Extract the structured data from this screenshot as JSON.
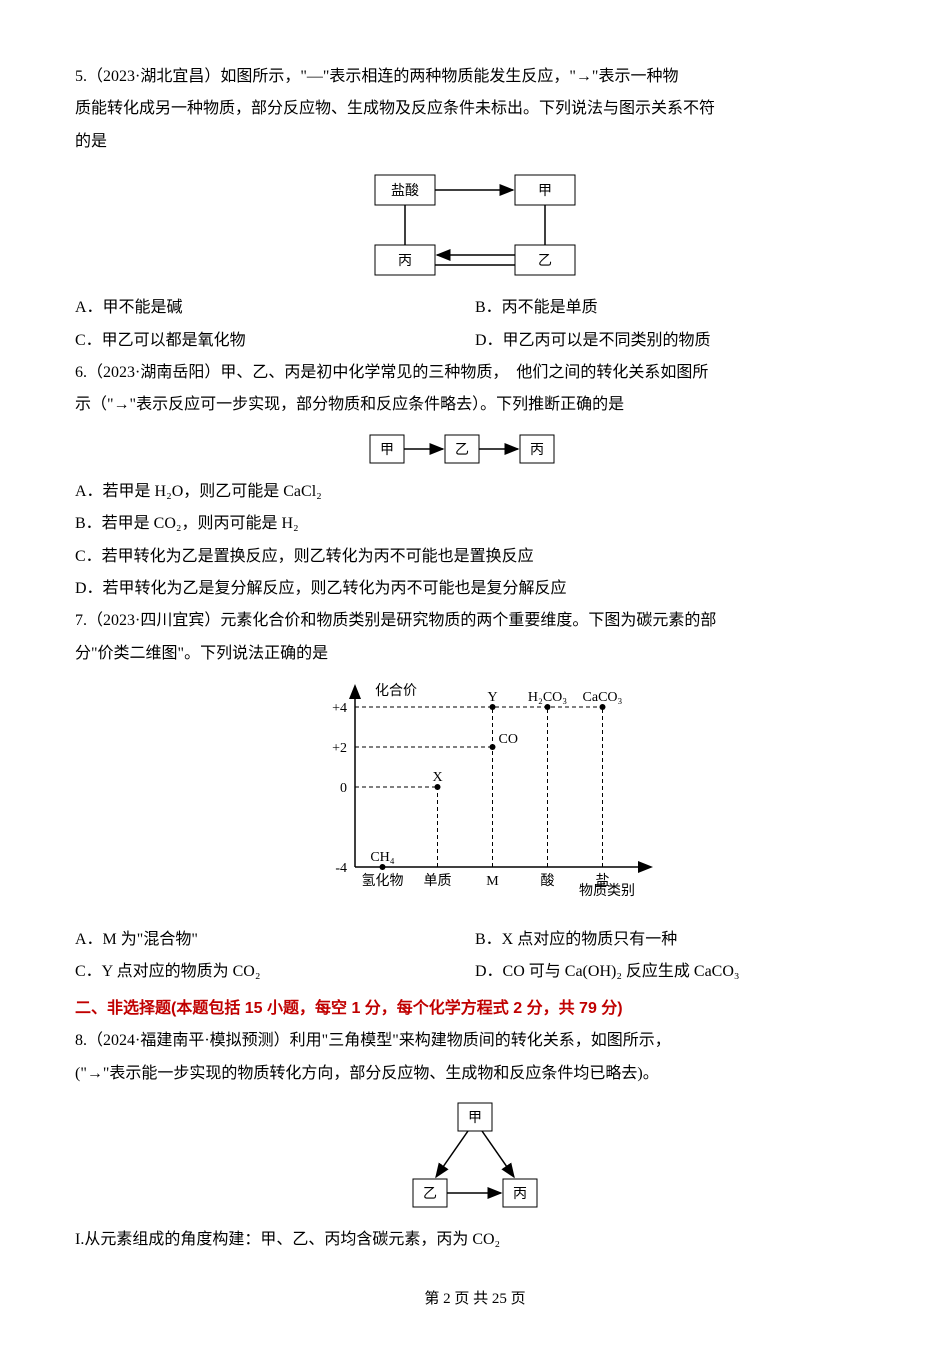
{
  "q5": {
    "stem1": "5.（2023·湖北宜昌）如图所示，\"—\"表示相连的两种物质能发生反应，\"→\"表示一种物",
    "stem2": "质能转化成另一种物质，部分反应物、生成物及反应条件未标出。下列说法与图示关系不符",
    "stem3": "的是",
    "diagram": {
      "nodes": {
        "tl": "盐酸",
        "tr": "甲",
        "bl": "丙",
        "br": "乙"
      },
      "edges": [
        {
          "from": "tl",
          "to": "tr",
          "type": "arrow"
        },
        {
          "from": "tl",
          "to": "bl",
          "type": "line"
        },
        {
          "from": "tr",
          "to": "br",
          "type": "line"
        },
        {
          "from": "br",
          "to": "bl",
          "type": "arrow"
        },
        {
          "from": "bl",
          "to": "br",
          "type": "line"
        }
      ],
      "node_border": "#000",
      "node_bg": "#fff",
      "stroke": "#000",
      "font_size": 14
    },
    "A": "A．甲不能是碱",
    "B": "B．丙不能是单质",
    "C": "C．甲乙可以都是氧化物",
    "D": "D．甲乙丙可以是不同类别的物质"
  },
  "q6": {
    "stem1": "6.（2023·湖南岳阳）甲、乙、丙是初中化学常见的三种物质，　他们之间的转化关系如图所",
    "stem2": "示（\"→\"表示反应可一步实现，部分物质和反应条件略去）。下列推断正确的是",
    "diagram": {
      "nodes": [
        "甲",
        "乙",
        "丙"
      ],
      "node_border": "#000",
      "node_bg": "#fff",
      "stroke": "#000",
      "font_size": 14
    },
    "A": "A．若甲是 H₂O，则乙可能是 CaCl₂",
    "B": "B．若甲是 CO₂，则丙可能是 H₂",
    "C": "C．若甲转化为乙是置换反应，则乙转化为丙不可能也是置换反应",
    "D": "D．若甲转化为乙是复分解反应，则乙转化为丙不可能也是复分解反应"
  },
  "q7": {
    "stem1": "7.（2023·四川宜宾）元素化合价和物质类别是研究物质的两个重要维度。下图为碳元素的部",
    "stem2": "分\"价类二维图\"。下列说法正确的是",
    "chart": {
      "type": "scatter-with-labels",
      "yaxis_title": "化合价",
      "xaxis_title": "物质类别",
      "y_ticks": [
        -4,
        0,
        "+2",
        "+4"
      ],
      "x_categories": [
        "氢化物",
        "单质",
        "M",
        "酸",
        "盐"
      ],
      "points": [
        {
          "x": "氢化物",
          "y": -4,
          "label": "CH₄",
          "label_pos": "above"
        },
        {
          "x": "单质",
          "y": 0,
          "label": "X",
          "label_pos": "above"
        },
        {
          "x": "M",
          "y": 2,
          "label": "CO",
          "label_pos": "above-right"
        },
        {
          "x": "M",
          "y": 4,
          "label": "Y",
          "label_pos": "above"
        },
        {
          "x": "酸",
          "y": 4,
          "label": "H₂CO₃",
          "label_pos": "above"
        },
        {
          "x": "盐",
          "y": 4,
          "label": "CaCO₃",
          "label_pos": "above"
        }
      ],
      "gridline_style": "dashed",
      "gridline_color": "#000",
      "axis_color": "#000",
      "point_fill": "#000",
      "point_radius": 3,
      "font_size": 14,
      "background_color": "#ffffff"
    },
    "A": "A．M 为\"混合物\"",
    "B": "B．X 点对应的物质只有一种",
    "C": "C．Y 点对应的物质为 CO₂",
    "D": "D．CO 可与 Ca(OH)₂ 反应生成 CaCO₃"
  },
  "section2_header": "二、非选择题(本题包括 15 小题，每空 1 分，每个化学方程式 2 分，共 79 分)",
  "q8": {
    "stem1": "8.（2024·福建南平·模拟预测）利用\"三角模型\"来构建物质间的转化关系，如图所示，",
    "stem2": "(\"→\"表示能一步实现的物质转化方向，部分反应物、生成物和反应条件均已略去)。",
    "diagram": {
      "nodes": {
        "top": "甲",
        "bl": "乙",
        "br": "丙"
      },
      "edges": [
        {
          "from": "top",
          "to": "bl",
          "type": "arrow"
        },
        {
          "from": "top",
          "to": "br",
          "type": "arrow"
        },
        {
          "from": "bl",
          "to": "br",
          "type": "arrow"
        }
      ],
      "node_border": "#000",
      "node_bg": "#fff",
      "stroke": "#000",
      "font_size": 14
    },
    "line_I": "I.从元素组成的角度构建：甲、乙、丙均含碳元素，丙为 CO₂"
  },
  "footer": "第 2 页 共 25 页"
}
